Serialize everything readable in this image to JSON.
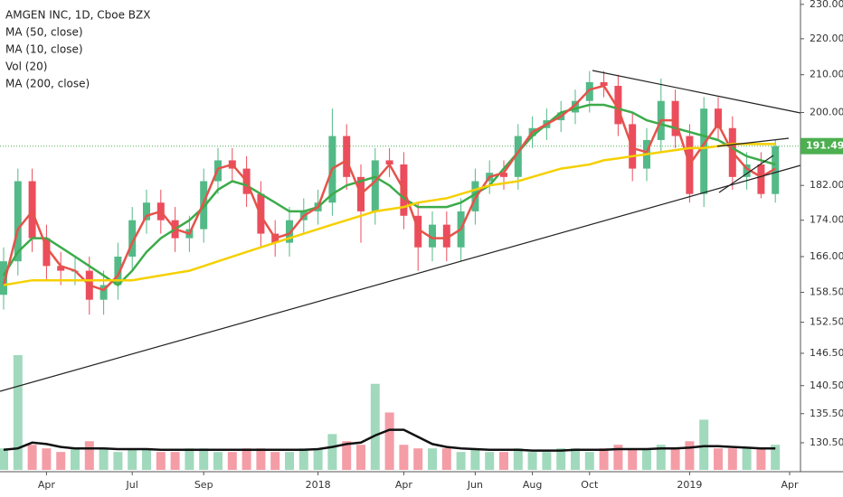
{
  "chart_data": {
    "type": "candlestick",
    "title": "AMGEN INC, 1D, Cboe BZX",
    "categories": [
      null,
      null,
      null,
      "Apr",
      null,
      null,
      null,
      null,
      null,
      "Jul",
      null,
      null,
      null,
      null,
      "Sep",
      null,
      null,
      null,
      null,
      null,
      null,
      null,
      "2018",
      null,
      null,
      null,
      null,
      null,
      "Apr",
      null,
      null,
      null,
      null,
      "Jun",
      null,
      null,
      null,
      "Aug",
      null,
      null,
      null,
      "Oct",
      null,
      null,
      null,
      null,
      null,
      null,
      "2019",
      null,
      null,
      null,
      null,
      null,
      null,
      "Apr"
    ],
    "open": [
      158,
      165,
      183,
      170,
      164,
      163,
      163,
      157,
      160,
      166,
      174,
      178,
      174,
      170,
      172,
      183,
      188,
      186,
      180,
      171,
      169,
      174,
      176,
      178,
      194,
      184,
      176,
      188,
      187,
      175,
      168,
      173,
      168,
      176,
      183,
      185,
      184,
      194,
      196,
      198,
      200,
      203,
      208,
      207,
      197,
      186,
      193,
      203,
      194,
      180,
      201,
      196,
      184,
      187,
      180,
      null
    ],
    "high": [
      168,
      186,
      186,
      173,
      167,
      166,
      166,
      163,
      169,
      177,
      181,
      181,
      177,
      175,
      186,
      191,
      191,
      189,
      183,
      174,
      177,
      179,
      181,
      201,
      197,
      187,
      191,
      191,
      190,
      178,
      176,
      176,
      179,
      186,
      188,
      188,
      197,
      199,
      201,
      203,
      206,
      211,
      211,
      210,
      200,
      196,
      209,
      206,
      197,
      204,
      204,
      199,
      190,
      190,
      193,
      null
    ],
    "low": [
      155,
      162,
      167,
      161,
      160,
      160,
      154,
      154,
      157,
      163,
      171,
      171,
      167,
      167,
      169,
      180,
      183,
      177,
      168,
      166,
      166,
      171,
      173,
      175,
      181,
      169,
      173,
      184,
      172,
      163,
      165,
      165,
      165,
      173,
      180,
      181,
      181,
      191,
      193,
      195,
      197,
      200,
      204,
      194,
      183,
      183,
      190,
      191,
      178,
      177,
      193,
      181,
      181,
      179,
      178,
      null
    ],
    "close": [
      165,
      183,
      170,
      164,
      163,
      163,
      157,
      160,
      166,
      174,
      178,
      174,
      170,
      172,
      183,
      188,
      186,
      180,
      171,
      169,
      174,
      176,
      178,
      194,
      184,
      176,
      188,
      187,
      175,
      168,
      173,
      168,
      176,
      183,
      185,
      184,
      194,
      196,
      198,
      200,
      203,
      208,
      207,
      197,
      186,
      193,
      203,
      194,
      180,
      201,
      196,
      184,
      187,
      180,
      191.49,
      null
    ],
    "up_color": "#53b987",
    "down_color": "#eb4d5c",
    "lines": [
      {
        "name": "MA (50, close)",
        "color": "#3cab4a",
        "values": [
          162,
          167,
          170,
          170,
          168,
          166,
          164,
          162,
          160,
          163,
          167,
          170,
          172,
          174,
          177,
          181,
          183,
          182,
          180,
          178,
          176,
          176,
          177,
          180,
          182,
          183,
          184,
          182,
          179,
          177,
          177,
          177,
          178,
          180,
          182,
          186,
          190,
          194,
          197,
          200,
          201,
          202,
          202,
          201,
          200,
          198,
          197,
          196,
          195,
          194,
          193,
          191,
          189,
          188,
          187,
          null
        ]
      },
      {
        "name": "MA (10, close)",
        "color": "#e5534b",
        "values": [
          160,
          172,
          176,
          168,
          164,
          163,
          160,
          159,
          162,
          169,
          175,
          176,
          172,
          171,
          178,
          186,
          187,
          183,
          175,
          170,
          171,
          175,
          177,
          186,
          188,
          180,
          183,
          187,
          181,
          172,
          170,
          170,
          172,
          179,
          184,
          185,
          190,
          195,
          197,
          199,
          202,
          206,
          207,
          201,
          191,
          190,
          198,
          198,
          187,
          192,
          197,
          190,
          186,
          184,
          186,
          null
        ]
      },
      {
        "name": "MA (200, close)",
        "color": "#f5d000",
        "values": [
          160,
          160.5,
          161,
          161,
          161,
          161,
          161,
          161,
          161,
          161,
          161.5,
          162,
          162.5,
          163,
          164,
          165,
          166,
          167,
          168,
          169,
          170,
          171,
          172,
          173,
          174,
          175,
          176,
          176.5,
          177,
          178,
          178.5,
          179,
          180,
          181,
          182,
          182.5,
          183,
          184,
          185,
          186,
          186.5,
          187,
          188,
          188.5,
          189,
          189.5,
          190,
          190.5,
          191,
          191,
          191.5,
          192,
          192,
          192,
          192,
          null
        ]
      }
    ],
    "volume": {
      "name": "Vol (20)",
      "values": [
        3,
        16,
        3.5,
        3,
        2.5,
        3,
        4,
        3,
        2.5,
        3,
        3,
        2.5,
        2.5,
        3,
        3,
        2.5,
        2.5,
        3,
        3,
        2.5,
        2.5,
        3,
        3,
        5,
        4,
        3.5,
        12,
        8,
        3.5,
        3,
        3,
        3,
        2.5,
        3,
        2.5,
        2.5,
        3,
        2.5,
        2.5,
        3,
        3,
        2.5,
        3,
        3.5,
        3,
        3,
        3.5,
        3,
        4,
        7,
        3,
        3,
        3,
        3,
        3.5,
        null
      ],
      "ma_values": [
        2.8,
        3,
        3.8,
        3.6,
        3.2,
        3,
        3,
        3,
        2.9,
        2.9,
        2.9,
        2.8,
        2.8,
        2.8,
        2.8,
        2.8,
        2.8,
        2.8,
        2.8,
        2.8,
        2.8,
        2.8,
        2.9,
        3.2,
        3.6,
        3.8,
        4.8,
        5.6,
        5.6,
        4.6,
        3.6,
        3.2,
        3,
        2.9,
        2.8,
        2.8,
        2.8,
        2.7,
        2.7,
        2.7,
        2.8,
        2.8,
        2.8,
        2.9,
        2.9,
        2.9,
        3,
        3,
        3.1,
        3.3,
        3.3,
        3.2,
        3.1,
        3,
        3,
        null
      ],
      "ma_color": "#111111"
    },
    "log_scale": true,
    "grid": false,
    "ylim": [
      126,
      231.3
    ],
    "yticks": [
      {
        "value": 130.5,
        "label": "130.50"
      },
      {
        "value": 135.5,
        "label": "135.50"
      },
      {
        "value": 140.5,
        "label": "140.50"
      },
      {
        "value": 146.5,
        "label": "146.50"
      },
      {
        "value": 152.5,
        "label": "152.50"
      },
      {
        "value": 158.5,
        "label": "158.50"
      },
      {
        "value": 166,
        "label": "166.00"
      },
      {
        "value": 174,
        "label": "174.00"
      },
      {
        "value": 182,
        "label": "182.00"
      },
      {
        "value": 200,
        "label": "200.00"
      },
      {
        "value": 210,
        "label": "210.00"
      },
      {
        "value": 220,
        "label": "220.00"
      },
      {
        "value": 230,
        "label": "230.00"
      }
    ],
    "last_price": 191.49,
    "last_price_color": "#4caf50"
  }
}
